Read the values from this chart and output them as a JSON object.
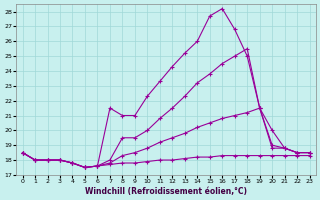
{
  "xlabel": "Windchill (Refroidissement éolien,°C)",
  "xlim": [
    -0.5,
    23.5
  ],
  "ylim": [
    17.0,
    28.5
  ],
  "yticks": [
    17,
    18,
    19,
    20,
    21,
    22,
    23,
    24,
    25,
    26,
    27,
    28
  ],
  "xticks": [
    0,
    1,
    2,
    3,
    4,
    5,
    6,
    7,
    8,
    9,
    10,
    11,
    12,
    13,
    14,
    15,
    16,
    17,
    18,
    19,
    20,
    21,
    22,
    23
  ],
  "bg_color": "#c8f0ee",
  "grid_color": "#a0d8d8",
  "line_color": "#990099",
  "lines": [
    [
      18.5,
      18.0,
      18.0,
      18.0,
      17.8,
      17.5,
      17.6,
      17.7,
      17.8,
      17.8,
      17.9,
      18.0,
      18.0,
      18.1,
      18.2,
      18.2,
      18.3,
      18.3,
      18.3,
      18.3,
      18.3,
      18.3,
      18.3,
      18.3
    ],
    [
      18.5,
      18.0,
      18.0,
      18.0,
      17.8,
      17.5,
      17.6,
      17.8,
      18.3,
      18.5,
      18.8,
      19.2,
      19.5,
      19.8,
      20.2,
      20.5,
      20.8,
      21.0,
      21.2,
      21.5,
      20.0,
      18.8,
      18.5,
      18.5
    ],
    [
      18.5,
      18.0,
      18.0,
      18.0,
      17.8,
      17.5,
      17.6,
      18.0,
      19.5,
      19.5,
      20.0,
      20.8,
      21.5,
      22.3,
      23.2,
      23.8,
      24.5,
      25.0,
      25.5,
      21.5,
      19.0,
      18.8,
      18.5,
      18.5
    ],
    [
      18.5,
      18.0,
      18.0,
      18.0,
      17.8,
      17.5,
      17.6,
      21.5,
      21.0,
      21.0,
      22.3,
      23.3,
      24.3,
      25.2,
      26.0,
      27.7,
      28.2,
      26.8,
      25.0,
      21.5,
      18.8,
      18.8,
      18.5,
      18.5
    ]
  ]
}
